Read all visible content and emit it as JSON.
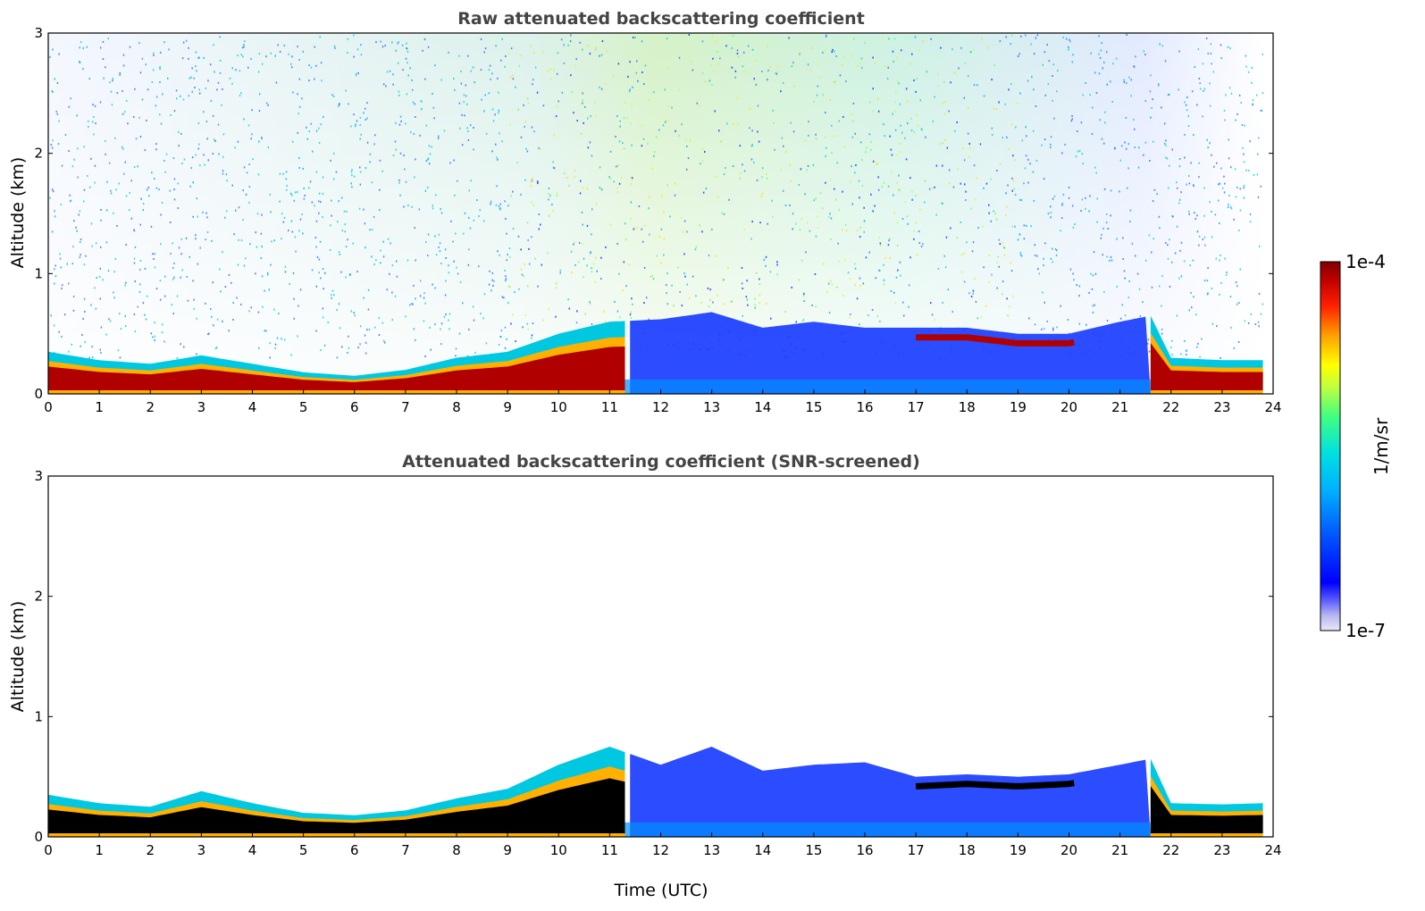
{
  "chart_data": [
    {
      "type": "heatmap",
      "title": "Raw attenuated backscattering coefficient",
      "xlabel": "",
      "ylabel": "Altitude (km)",
      "xlim": [
        0,
        24
      ],
      "ylim": [
        0,
        3
      ],
      "x_ticks": [
        0,
        1,
        2,
        3,
        4,
        5,
        6,
        7,
        8,
        9,
        10,
        11,
        12,
        13,
        14,
        15,
        16,
        17,
        18,
        19,
        20,
        21,
        22,
        23,
        24
      ],
      "y_ticks": [
        0,
        1,
        2,
        3
      ],
      "layer_top_km": [
        [
          0,
          0.35
        ],
        [
          1,
          0.28
        ],
        [
          2,
          0.25
        ],
        [
          3,
          0.32
        ],
        [
          4,
          0.25
        ],
        [
          5,
          0.18
        ],
        [
          6,
          0.15
        ],
        [
          7,
          0.2
        ],
        [
          8,
          0.3
        ],
        [
          9,
          0.35
        ],
        [
          10,
          0.5
        ],
        [
          11,
          0.6
        ],
        [
          12,
          0.62
        ],
        [
          13,
          0.68
        ],
        [
          14,
          0.55
        ],
        [
          15,
          0.6
        ],
        [
          16,
          0.55
        ],
        [
          17,
          0.55
        ],
        [
          18,
          0.55
        ],
        [
          19,
          0.5
        ],
        [
          20,
          0.5
        ],
        [
          21,
          0.6
        ],
        [
          21.6,
          0.65
        ],
        [
          22,
          0.3
        ],
        [
          23,
          0.28
        ],
        [
          23.8,
          0.28
        ]
      ]
    },
    {
      "type": "heatmap",
      "title": "Attenuated backscattering coefficient (SNR-screened)",
      "xlabel": "Time (UTC)",
      "ylabel": "Altitude (km)",
      "xlim": [
        0,
        24
      ],
      "ylim": [
        0,
        3
      ],
      "x_ticks": [
        0,
        1,
        2,
        3,
        4,
        5,
        6,
        7,
        8,
        9,
        10,
        11,
        12,
        13,
        14,
        15,
        16,
        17,
        18,
        19,
        20,
        21,
        22,
        23,
        24
      ],
      "y_ticks": [
        0,
        1,
        2,
        3
      ],
      "layer_top_km": [
        [
          0,
          0.35
        ],
        [
          1,
          0.28
        ],
        [
          2,
          0.25
        ],
        [
          3,
          0.38
        ],
        [
          4,
          0.28
        ],
        [
          5,
          0.2
        ],
        [
          6,
          0.18
        ],
        [
          7,
          0.22
        ],
        [
          8,
          0.32
        ],
        [
          9,
          0.4
        ],
        [
          10,
          0.6
        ],
        [
          11,
          0.75
        ],
        [
          12,
          0.6
        ],
        [
          13,
          0.75
        ],
        [
          14,
          0.55
        ],
        [
          15,
          0.6
        ],
        [
          16,
          0.62
        ],
        [
          17,
          0.5
        ],
        [
          18,
          0.52
        ],
        [
          19,
          0.5
        ],
        [
          20,
          0.52
        ],
        [
          21,
          0.6
        ],
        [
          21.6,
          0.65
        ],
        [
          22,
          0.28
        ],
        [
          23,
          0.27
        ],
        [
          23.8,
          0.28
        ]
      ]
    }
  ],
  "colorbar": {
    "max_label": "1e-4",
    "min_label": "1e-7",
    "unit_label": "1/m/sr",
    "colors": [
      "#e8e8f8",
      "#b8b8f0",
      "#6060ff",
      "#0000ff",
      "#0050ff",
      "#00a0ff",
      "#00e0e0",
      "#40ff80",
      "#c0ff40",
      "#ffff00",
      "#ffc000",
      "#ff6000",
      "#ff0000",
      "#c00000",
      "#800000"
    ]
  }
}
